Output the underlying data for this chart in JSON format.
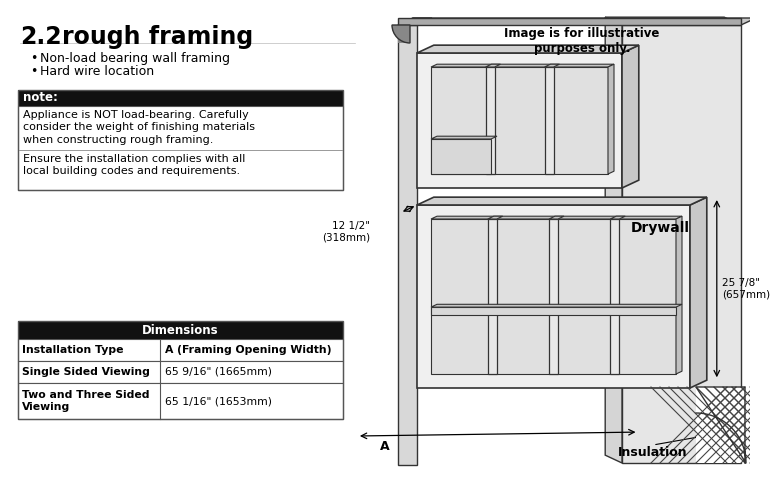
{
  "title_num": "2.2",
  "title_text": "rough framing",
  "bullets": [
    "Non-load bearing wall framing",
    "Hard wire location"
  ],
  "note_header": "note:",
  "note_lines_1": [
    "Appliance is NOT load-bearing. Carefully",
    "consider the weight of finishing materials",
    "when constructing rough framing."
  ],
  "note_lines_2": [
    "Ensure the installation complies with all",
    "local building codes and requirements."
  ],
  "table_header": "Dimensions",
  "table_col1_header": "Installation Type",
  "table_col2_header": "A (Framing Opening Width)",
  "table_row1_c1": "Single Sided Viewing",
  "table_row1_c2": "65 9/16\" (1665mm)",
  "table_row2_c1": "Two and Three Sided\nViewing",
  "table_row2_c2": "65 1/16\" (1653mm)",
  "illus_note": "Image is for illustrative\npurposes only.",
  "label_drywall": "Drywall",
  "label_insulation": "Insulation",
  "dim1_text": "12 1/2\"\n(318mm)",
  "dim2_text": "25 7/8\"\n(657mm)",
  "label_A": "A",
  "bg_color": "#ffffff"
}
